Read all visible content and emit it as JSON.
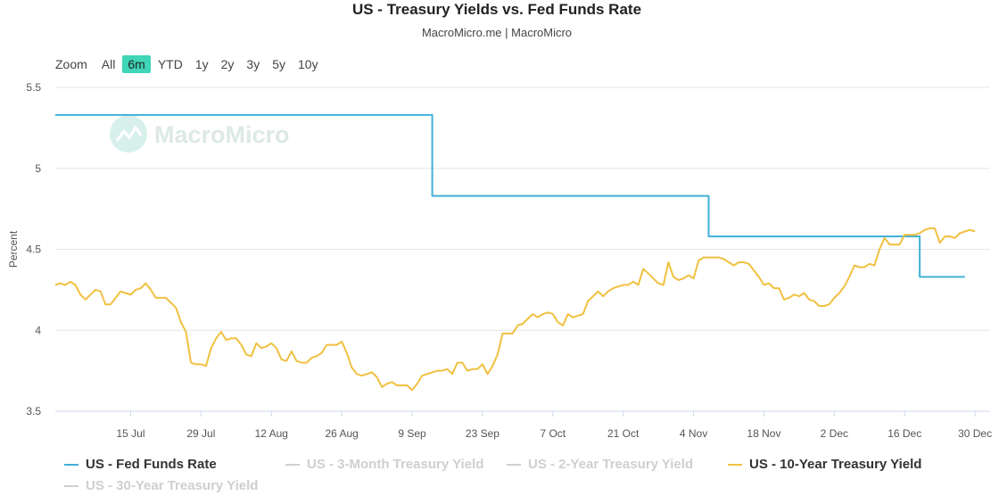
{
  "header": {
    "title": "US - Treasury Yields vs. Fed Funds Rate",
    "subtitle": "MacroMicro.me | MacroMicro"
  },
  "watermark": "MacroMicro",
  "zoom": {
    "label": "Zoom",
    "options": [
      "All",
      "6m",
      "YTD",
      "1y",
      "2y",
      "3y",
      "5y",
      "10y"
    ],
    "selected": "6m"
  },
  "colors": {
    "fed": "#41b0d8",
    "ten_year": "#f0c040",
    "hidden": "#cfcfcf",
    "grid": "#e6e6e6"
  },
  "legend": [
    {
      "label": "US - Fed Funds Rate",
      "color": "#41b0d8",
      "visible": true
    },
    {
      "label": "US - 3-Month Treasury Yield",
      "color": "#cfcfcf",
      "visible": false
    },
    {
      "label": "US - 2-Year Treasury Yield",
      "color": "#cfcfcf",
      "visible": false
    },
    {
      "label": "US - 10-Year Treasury Yield",
      "color": "#f0c040",
      "visible": true
    },
    {
      "label": "US - 30-Year Treasury Yield",
      "color": "#cfcfcf",
      "visible": false
    }
  ],
  "chart_data": {
    "type": "line",
    "title": "US - Treasury Yields vs. Fed Funds Rate",
    "ylabel": "Percent",
    "xlabel": "",
    "ylim": [
      3.5,
      5.5
    ],
    "yticks": [
      3.5,
      4,
      4.5,
      5,
      5.5
    ],
    "ytick_labels": [
      "3.5",
      "4",
      "4.5",
      "5",
      "5.5"
    ],
    "xlim_day": [
      -9,
      177
    ],
    "xticks": [
      {
        "day": 6,
        "label": "15 Jul"
      },
      {
        "day": 20,
        "label": "29 Jul"
      },
      {
        "day": 34,
        "label": "12 Aug"
      },
      {
        "day": 48,
        "label": "26 Aug"
      },
      {
        "day": 62,
        "label": "9 Sep"
      },
      {
        "day": 76,
        "label": "23 Sep"
      },
      {
        "day": 90,
        "label": "7 Oct"
      },
      {
        "day": 104,
        "label": "21 Oct"
      },
      {
        "day": 118,
        "label": "4 Nov"
      },
      {
        "day": 132,
        "label": "18 Nov"
      },
      {
        "day": 146,
        "label": "2 Dec"
      },
      {
        "day": 160,
        "label": "16 Dec"
      },
      {
        "day": 174,
        "label": "30 Dec"
      }
    ],
    "day_zero": "9 Jul",
    "series": [
      {
        "name": "US - Fed Funds Rate",
        "step": true,
        "points": [
          [
            -9,
            5.33
          ],
          [
            66,
            5.33
          ],
          [
            66,
            4.83
          ],
          [
            121,
            4.83
          ],
          [
            121,
            4.58
          ],
          [
            163,
            4.58
          ],
          [
            163,
            4.33
          ],
          [
            172,
            4.33
          ]
        ]
      },
      {
        "name": "US - 10-Year Treasury Yield",
        "step": false,
        "points": [
          [
            -9,
            4.28
          ],
          [
            -8,
            4.29
          ],
          [
            -7,
            4.28
          ],
          [
            -6,
            4.3
          ],
          [
            -5,
            4.28
          ],
          [
            -4,
            4.22
          ],
          [
            -3,
            4.19
          ],
          [
            -2,
            4.22
          ],
          [
            -1,
            4.25
          ],
          [
            0,
            4.24
          ],
          [
            1,
            4.16
          ],
          [
            2,
            4.16
          ],
          [
            3,
            4.2
          ],
          [
            4,
            4.24
          ],
          [
            5,
            4.23
          ],
          [
            6,
            4.22
          ],
          [
            7,
            4.25
          ],
          [
            8,
            4.26
          ],
          [
            9,
            4.29
          ],
          [
            10,
            4.25
          ],
          [
            11,
            4.2
          ],
          [
            12,
            4.2
          ],
          [
            13,
            4.2
          ],
          [
            14,
            4.17
          ],
          [
            15,
            4.14
          ],
          [
            16,
            4.05
          ],
          [
            17,
            3.99
          ],
          [
            18,
            3.8
          ],
          [
            19,
            3.79
          ],
          [
            20,
            3.79
          ],
          [
            21,
            3.78
          ],
          [
            22,
            3.89
          ],
          [
            23,
            3.95
          ],
          [
            24,
            3.99
          ],
          [
            25,
            3.94
          ],
          [
            26,
            3.95
          ],
          [
            27,
            3.95
          ],
          [
            28,
            3.91
          ],
          [
            29,
            3.85
          ],
          [
            30,
            3.84
          ],
          [
            31,
            3.92
          ],
          [
            32,
            3.89
          ],
          [
            33,
            3.9
          ],
          [
            34,
            3.92
          ],
          [
            35,
            3.89
          ],
          [
            36,
            3.82
          ],
          [
            37,
            3.81
          ],
          [
            38,
            3.87
          ],
          [
            39,
            3.81
          ],
          [
            40,
            3.8
          ],
          [
            41,
            3.8
          ],
          [
            42,
            3.83
          ],
          [
            43,
            3.84
          ],
          [
            44,
            3.86
          ],
          [
            45,
            3.91
          ],
          [
            46,
            3.91
          ],
          [
            47,
            3.91
          ],
          [
            48,
            3.93
          ],
          [
            49,
            3.86
          ],
          [
            50,
            3.77
          ],
          [
            51,
            3.73
          ],
          [
            52,
            3.72
          ],
          [
            53,
            3.73
          ],
          [
            54,
            3.74
          ],
          [
            55,
            3.71
          ],
          [
            56,
            3.65
          ],
          [
            57,
            3.67
          ],
          [
            58,
            3.68
          ],
          [
            59,
            3.66
          ],
          [
            60,
            3.66
          ],
          [
            61,
            3.66
          ],
          [
            62,
            3.63
          ],
          [
            63,
            3.67
          ],
          [
            64,
            3.72
          ],
          [
            65,
            3.73
          ],
          [
            66,
            3.74
          ],
          [
            67,
            3.75
          ],
          [
            68,
            3.75
          ],
          [
            69,
            3.76
          ],
          [
            70,
            3.73
          ],
          [
            71,
            3.8
          ],
          [
            72,
            3.8
          ],
          [
            73,
            3.75
          ],
          [
            74,
            3.76
          ],
          [
            75,
            3.76
          ],
          [
            76,
            3.79
          ],
          [
            77,
            3.73
          ],
          [
            78,
            3.78
          ],
          [
            79,
            3.85
          ],
          [
            80,
            3.98
          ],
          [
            81,
            3.98
          ],
          [
            82,
            3.98
          ],
          [
            83,
            4.03
          ],
          [
            84,
            4.04
          ],
          [
            85,
            4.07
          ],
          [
            86,
            4.1
          ],
          [
            87,
            4.08
          ],
          [
            88,
            4.1
          ],
          [
            89,
            4.11
          ],
          [
            90,
            4.1
          ],
          [
            91,
            4.05
          ],
          [
            92,
            4.03
          ],
          [
            93,
            4.1
          ],
          [
            94,
            4.08
          ],
          [
            95,
            4.09
          ],
          [
            96,
            4.1
          ],
          [
            97,
            4.18
          ],
          [
            98,
            4.21
          ],
          [
            99,
            4.24
          ],
          [
            100,
            4.21
          ],
          [
            101,
            4.24
          ],
          [
            102,
            4.26
          ],
          [
            103,
            4.27
          ],
          [
            104,
            4.28
          ],
          [
            105,
            4.28
          ],
          [
            106,
            4.3
          ],
          [
            107,
            4.28
          ],
          [
            108,
            4.38
          ],
          [
            109,
            4.35
          ],
          [
            110,
            4.32
          ],
          [
            111,
            4.29
          ],
          [
            112,
            4.28
          ],
          [
            113,
            4.42
          ],
          [
            114,
            4.33
          ],
          [
            115,
            4.31
          ],
          [
            116,
            4.32
          ],
          [
            117,
            4.34
          ],
          [
            118,
            4.32
          ],
          [
            119,
            4.43
          ],
          [
            120,
            4.45
          ],
          [
            121,
            4.45
          ],
          [
            122,
            4.45
          ],
          [
            123,
            4.45
          ],
          [
            124,
            4.44
          ],
          [
            125,
            4.42
          ],
          [
            126,
            4.4
          ],
          [
            127,
            4.42
          ],
          [
            128,
            4.42
          ],
          [
            129,
            4.41
          ],
          [
            130,
            4.37
          ],
          [
            131,
            4.33
          ],
          [
            132,
            4.28
          ],
          [
            133,
            4.29
          ],
          [
            134,
            4.26
          ],
          [
            135,
            4.26
          ],
          [
            136,
            4.19
          ],
          [
            137,
            4.2
          ],
          [
            138,
            4.22
          ],
          [
            139,
            4.21
          ],
          [
            140,
            4.23
          ],
          [
            141,
            4.19
          ],
          [
            142,
            4.18
          ],
          [
            143,
            4.15
          ],
          [
            144,
            4.15
          ],
          [
            145,
            4.16
          ],
          [
            146,
            4.2
          ],
          [
            147,
            4.23
          ],
          [
            148,
            4.27
          ],
          [
            149,
            4.33
          ],
          [
            150,
            4.4
          ],
          [
            151,
            4.39
          ],
          [
            152,
            4.39
          ],
          [
            153,
            4.41
          ],
          [
            154,
            4.4
          ],
          [
            155,
            4.5
          ],
          [
            156,
            4.57
          ],
          [
            157,
            4.53
          ],
          [
            158,
            4.53
          ],
          [
            159,
            4.53
          ],
          [
            160,
            4.59
          ],
          [
            161,
            4.59
          ],
          [
            162,
            4.59
          ],
          [
            163,
            4.6
          ],
          [
            164,
            4.62
          ],
          [
            165,
            4.63
          ],
          [
            166,
            4.63
          ],
          [
            167,
            4.54
          ],
          [
            168,
            4.58
          ],
          [
            169,
            4.58
          ],
          [
            170,
            4.57
          ],
          [
            171,
            4.6
          ],
          [
            172,
            4.61
          ],
          [
            173,
            4.62
          ],
          [
            174,
            4.61
          ]
        ]
      }
    ]
  }
}
